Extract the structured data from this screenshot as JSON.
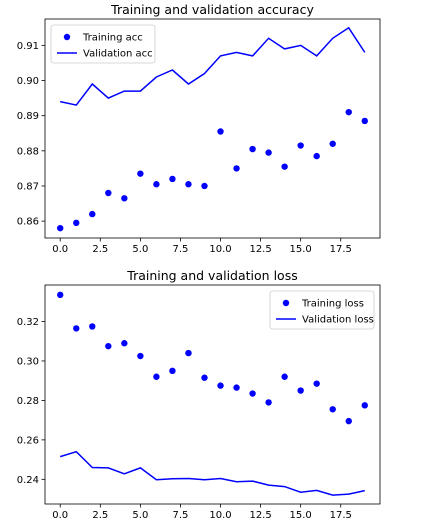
{
  "chart_data": [
    {
      "type": "line",
      "title": "Training and validation accuracy",
      "xlabel": "",
      "ylabel": "",
      "xlim": [
        -0.95,
        19.95
      ],
      "ylim": [
        0.8552,
        0.9175
      ],
      "xticks": [
        0,
        2.5,
        5,
        7.5,
        10,
        12.5,
        15,
        17.5
      ],
      "xtick_labels": [
        "0.0",
        "2.5",
        "5.0",
        "7.5",
        "10.0",
        "12.5",
        "15.0",
        "17.5"
      ],
      "yticks": [
        0.86,
        0.87,
        0.88,
        0.89,
        0.9,
        0.91
      ],
      "ytick_labels": [
        "0.86",
        "0.87",
        "0.88",
        "0.89",
        "0.90",
        "0.91"
      ],
      "legend": "upper-left",
      "grid": false,
      "x": [
        0,
        1,
        2,
        3,
        4,
        5,
        6,
        7,
        8,
        9,
        10,
        11,
        12,
        13,
        14,
        15,
        16,
        17,
        18,
        19
      ],
      "series": [
        {
          "name": "Training acc",
          "style": "dots",
          "color": "#0000ff",
          "values": [
            0.858,
            0.8595,
            0.862,
            0.868,
            0.8665,
            0.8735,
            0.8705,
            0.872,
            0.8705,
            0.87,
            0.8855,
            0.875,
            0.8805,
            0.8795,
            0.8755,
            0.8815,
            0.8785,
            0.882,
            0.891,
            0.8885
          ]
        },
        {
          "name": "Validation acc",
          "style": "line",
          "color": "#0000ff",
          "values": [
            0.894,
            0.893,
            0.899,
            0.895,
            0.897,
            0.897,
            0.901,
            0.903,
            0.899,
            0.902,
            0.907,
            0.908,
            0.907,
            0.912,
            0.909,
            0.91,
            0.907,
            0.912,
            0.915,
            0.908
          ]
        }
      ]
    },
    {
      "type": "line",
      "title": "Training and validation loss",
      "xlabel": "",
      "ylabel": "",
      "xlim": [
        -0.95,
        19.95
      ],
      "ylim": [
        0.2275,
        0.3385
      ],
      "xticks": [
        0,
        2.5,
        5,
        7.5,
        10,
        12.5,
        15,
        17.5
      ],
      "xtick_labels": [
        "0.0",
        "2.5",
        "5.0",
        "7.5",
        "10.0",
        "12.5",
        "15.0",
        "17.5"
      ],
      "yticks": [
        0.24,
        0.26,
        0.28,
        0.3,
        0.32
      ],
      "ytick_labels": [
        "0.24",
        "0.26",
        "0.28",
        "0.30",
        "0.32"
      ],
      "legend": "upper-right",
      "grid": false,
      "x": [
        0,
        1,
        2,
        3,
        4,
        5,
        6,
        7,
        8,
        9,
        10,
        11,
        12,
        13,
        14,
        15,
        16,
        17,
        18,
        19
      ],
      "series": [
        {
          "name": "Training loss",
          "style": "dots",
          "color": "#0000ff",
          "values": [
            0.3335,
            0.3165,
            0.3175,
            0.3075,
            0.309,
            0.3025,
            0.292,
            0.295,
            0.304,
            0.2915,
            0.2875,
            0.2865,
            0.2835,
            0.279,
            0.292,
            0.285,
            0.2885,
            0.2755,
            0.2695,
            0.2775
          ]
        },
        {
          "name": "Validation loss",
          "style": "line",
          "color": "#0000ff",
          "values": [
            0.2515,
            0.254,
            0.246,
            0.2458,
            0.2428,
            0.2458,
            0.2398,
            0.2403,
            0.2404,
            0.2398,
            0.2404,
            0.2388,
            0.2391,
            0.2371,
            0.2363,
            0.2335,
            0.2344,
            0.232,
            0.2325,
            0.2343
          ]
        }
      ]
    }
  ]
}
